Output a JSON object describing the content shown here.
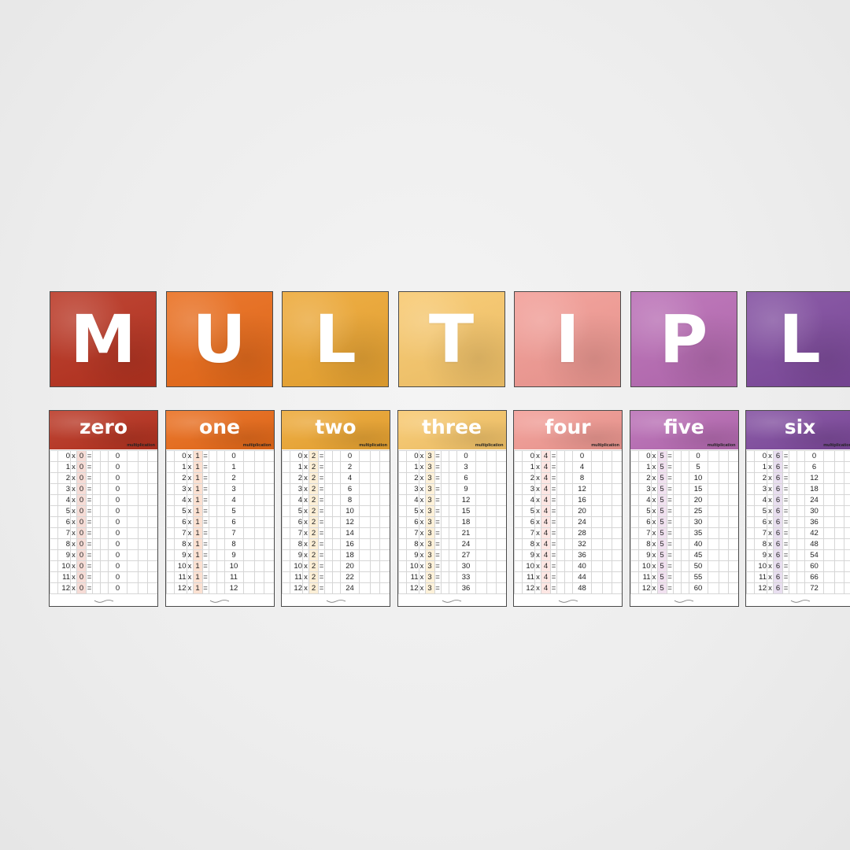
{
  "banner": {
    "letters": [
      {
        "char": "M",
        "color": "#b8321f"
      },
      {
        "char": "U",
        "color": "#e96a18"
      },
      {
        "char": "L",
        "color": "#eda631"
      },
      {
        "char": "T",
        "color": "#f8c76a"
      },
      {
        "char": "I",
        "color": "#f29a93"
      },
      {
        "char": "P",
        "color": "#b86bb4"
      },
      {
        "char": "L",
        "color": "#7f4a9e"
      }
    ]
  },
  "cards": [
    {
      "title": "zero",
      "subtitle": "multiplication",
      "multiplier": "0",
      "color": "#b8321f",
      "highlight": "#f6dcd6",
      "rows": [
        [
          "0",
          "0",
          "0"
        ],
        [
          "1",
          "0",
          "0"
        ],
        [
          "2",
          "0",
          "0"
        ],
        [
          "3",
          "0",
          "0"
        ],
        [
          "4",
          "0",
          "0"
        ],
        [
          "5",
          "0",
          "0"
        ],
        [
          "6",
          "0",
          "0"
        ],
        [
          "7",
          "0",
          "0"
        ],
        [
          "8",
          "0",
          "0"
        ],
        [
          "9",
          "0",
          "0"
        ],
        [
          "10",
          "0",
          "0"
        ],
        [
          "11",
          "0",
          "0"
        ],
        [
          "12",
          "0",
          "0"
        ]
      ]
    },
    {
      "title": "one",
      "subtitle": "multiplication",
      "multiplier": "1",
      "color": "#e96a18",
      "highlight": "#fbe1d2",
      "rows": [
        [
          "0",
          "1",
          "0"
        ],
        [
          "1",
          "1",
          "1"
        ],
        [
          "2",
          "1",
          "2"
        ],
        [
          "3",
          "1",
          "3"
        ],
        [
          "4",
          "1",
          "4"
        ],
        [
          "5",
          "1",
          "5"
        ],
        [
          "6",
          "1",
          "6"
        ],
        [
          "7",
          "1",
          "7"
        ],
        [
          "8",
          "1",
          "8"
        ],
        [
          "9",
          "1",
          "9"
        ],
        [
          "10",
          "1",
          "10"
        ],
        [
          "11",
          "1",
          "11"
        ],
        [
          "12",
          "1",
          "12"
        ]
      ]
    },
    {
      "title": "two",
      "subtitle": "multiplication",
      "multiplier": "2",
      "color": "#eda631",
      "highlight": "#fcefd6",
      "rows": [
        [
          "0",
          "2",
          "0"
        ],
        [
          "1",
          "2",
          "2"
        ],
        [
          "2",
          "2",
          "4"
        ],
        [
          "3",
          "2",
          "6"
        ],
        [
          "4",
          "2",
          "8"
        ],
        [
          "5",
          "2",
          "10"
        ],
        [
          "6",
          "2",
          "12"
        ],
        [
          "7",
          "2",
          "14"
        ],
        [
          "8",
          "2",
          "16"
        ],
        [
          "9",
          "2",
          "18"
        ],
        [
          "10",
          "2",
          "20"
        ],
        [
          "11",
          "2",
          "22"
        ],
        [
          "12",
          "2",
          "24"
        ]
      ]
    },
    {
      "title": "three",
      "subtitle": "multiplication",
      "multiplier": "3",
      "color": "#f8c76a",
      "highlight": "#fdf1d9",
      "rows": [
        [
          "0",
          "3",
          "0"
        ],
        [
          "1",
          "3",
          "3"
        ],
        [
          "2",
          "3",
          "6"
        ],
        [
          "3",
          "3",
          "9"
        ],
        [
          "4",
          "3",
          "12"
        ],
        [
          "5",
          "3",
          "15"
        ],
        [
          "6",
          "3",
          "18"
        ],
        [
          "7",
          "3",
          "21"
        ],
        [
          "8",
          "3",
          "24"
        ],
        [
          "9",
          "3",
          "27"
        ],
        [
          "10",
          "3",
          "30"
        ],
        [
          "11",
          "3",
          "33"
        ],
        [
          "12",
          "3",
          "36"
        ]
      ]
    },
    {
      "title": "four",
      "subtitle": "multiplication",
      "multiplier": "4",
      "color": "#f29a93",
      "highlight": "#fde6e3",
      "rows": [
        [
          "0",
          "4",
          "0"
        ],
        [
          "1",
          "4",
          "4"
        ],
        [
          "2",
          "4",
          "8"
        ],
        [
          "3",
          "4",
          "12"
        ],
        [
          "4",
          "4",
          "16"
        ],
        [
          "5",
          "4",
          "20"
        ],
        [
          "6",
          "4",
          "24"
        ],
        [
          "7",
          "4",
          "28"
        ],
        [
          "8",
          "4",
          "32"
        ],
        [
          "9",
          "4",
          "36"
        ],
        [
          "10",
          "4",
          "40"
        ],
        [
          "11",
          "4",
          "44"
        ],
        [
          "12",
          "4",
          "48"
        ]
      ]
    },
    {
      "title": "five",
      "subtitle": "multiplication",
      "multiplier": "5",
      "color": "#b86bb4",
      "highlight": "#f1e1f0",
      "rows": [
        [
          "0",
          "5",
          "0"
        ],
        [
          "1",
          "5",
          "5"
        ],
        [
          "2",
          "5",
          "10"
        ],
        [
          "3",
          "5",
          "15"
        ],
        [
          "4",
          "5",
          "20"
        ],
        [
          "5",
          "5",
          "25"
        ],
        [
          "6",
          "5",
          "30"
        ],
        [
          "7",
          "5",
          "35"
        ],
        [
          "8",
          "5",
          "40"
        ],
        [
          "9",
          "5",
          "45"
        ],
        [
          "10",
          "5",
          "50"
        ],
        [
          "11",
          "5",
          "55"
        ],
        [
          "12",
          "5",
          "60"
        ]
      ]
    },
    {
      "title": "six",
      "subtitle": "multiplication",
      "multiplier": "6",
      "color": "#7f4a9e",
      "highlight": "#e9dff0",
      "rows": [
        [
          "0",
          "6",
          "0"
        ],
        [
          "1",
          "6",
          "6"
        ],
        [
          "2",
          "6",
          "12"
        ],
        [
          "3",
          "6",
          "18"
        ],
        [
          "4",
          "6",
          "24"
        ],
        [
          "5",
          "6",
          "30"
        ],
        [
          "6",
          "6",
          "36"
        ],
        [
          "7",
          "6",
          "42"
        ],
        [
          "8",
          "6",
          "48"
        ],
        [
          "9",
          "6",
          "54"
        ],
        [
          "10",
          "6",
          "60"
        ],
        [
          "11",
          "6",
          "66"
        ],
        [
          "12",
          "6",
          "72"
        ]
      ]
    }
  ],
  "symbols": {
    "times": "x",
    "equals": "="
  }
}
